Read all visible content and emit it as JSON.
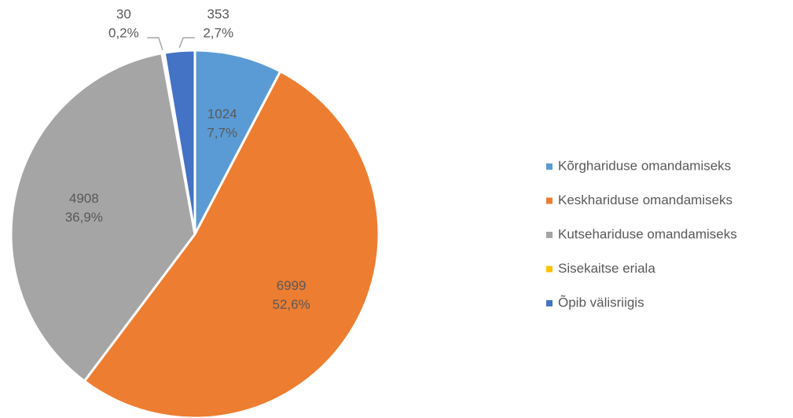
{
  "chart_data": {
    "type": "pie",
    "categories": [
      "Kõrghariduse omandamiseks",
      "Keskhariduse omandamiseks",
      "Kutsehariduse omandamiseks",
      "Sisekaitse eriala",
      "Õpib välisriigis"
    ],
    "values": [
      1024,
      6999,
      4908,
      30,
      353
    ],
    "percent_labels": [
      "7,7%",
      "52,6%",
      "36,9%",
      "0,2%",
      "2,7%"
    ],
    "colors": [
      "#5b9bd5",
      "#ed7d31",
      "#a5a5a5",
      "#ffc000",
      "#4472c4"
    ],
    "legend": "right"
  }
}
